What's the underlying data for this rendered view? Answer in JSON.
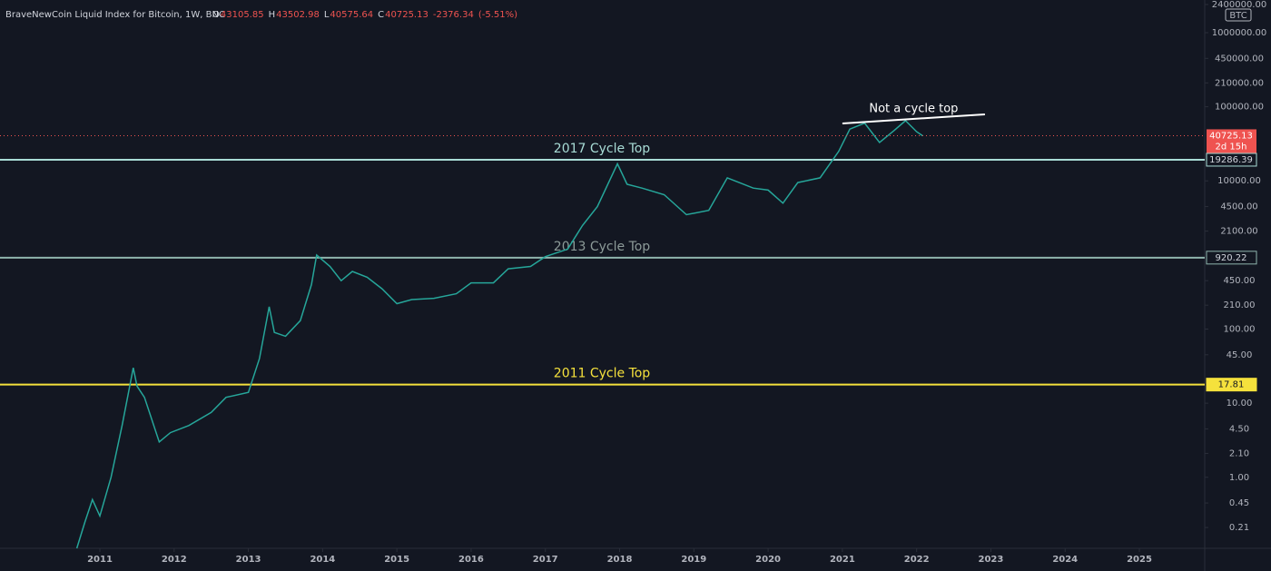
{
  "header": {
    "title": "BraveNewCoin Liquid Index for Bitcoin, 1W, BNC",
    "ohlc": [
      {
        "label": "O",
        "value": 43105.85
      },
      {
        "label": "H",
        "value": 43502.98
      },
      {
        "label": "L",
        "value": 40575.64
      },
      {
        "label": "C",
        "value": 40725.13
      }
    ],
    "change": -2376.34,
    "change_pct": "(-5.51%)"
  },
  "chart_data": {
    "type": "line",
    "log_scale": true,
    "color": "#26a69a",
    "currency": "BTC",
    "x": [
      2010.69,
      2010.8,
      2010.9,
      2011.0,
      2011.15,
      2011.3,
      2011.45,
      2011.5,
      2011.6,
      2011.8,
      2011.95,
      2012.2,
      2012.5,
      2012.7,
      2013.0,
      2013.15,
      2013.28,
      2013.35,
      2013.5,
      2013.7,
      2013.85,
      2013.92,
      2014.1,
      2014.25,
      2014.4,
      2014.6,
      2014.8,
      2015.0,
      2015.2,
      2015.5,
      2015.8,
      2016.0,
      2016.3,
      2016.5,
      2016.8,
      2017.0,
      2017.3,
      2017.5,
      2017.7,
      2017.97,
      2018.1,
      2018.3,
      2018.6,
      2018.9,
      2019.2,
      2019.45,
      2019.8,
      2020.0,
      2020.2,
      2020.4,
      2020.7,
      2020.95,
      2021.1,
      2021.3,
      2021.5,
      2021.7,
      2021.85,
      2022.0,
      2022.08
    ],
    "values": [
      0.11,
      0.25,
      0.5,
      0.3,
      1.0,
      5,
      30,
      17,
      12,
      3,
      4,
      5,
      7.5,
      12,
      14,
      40,
      200,
      90,
      80,
      130,
      400,
      1000,
      700,
      450,
      600,
      500,
      350,
      220,
      250,
      260,
      300,
      420,
      420,
      650,
      700,
      950,
      1200,
      2500,
      4500,
      17000,
      9000,
      8000,
      6500,
      3500,
      4000,
      11000,
      8000,
      7500,
      5000,
      9500,
      11000,
      25000,
      50000,
      60000,
      33000,
      48000,
      65000,
      46000,
      40725.13
    ],
    "xlim": [
      2009.655,
      2025.88
    ],
    "ylim": [
      0.11,
      2760000
    ],
    "xticks": [
      2011,
      2012,
      2013,
      2014,
      2015,
      2016,
      2017,
      2018,
      2019,
      2020,
      2021,
      2022,
      2023,
      2024,
      2025
    ],
    "yticks": [
      {
        "value": 2400000,
        "label": "2400000.00"
      },
      {
        "value": 1000000,
        "label": "1000000.00"
      },
      {
        "value": 450000,
        "label": "450000.00"
      },
      {
        "value": 210000,
        "label": "210000.00"
      },
      {
        "value": 100000,
        "label": "100000.00"
      },
      {
        "value": 10000,
        "label": "10000.00"
      },
      {
        "value": 4500,
        "label": "4500.00"
      },
      {
        "value": 2100,
        "label": "2100.00"
      },
      {
        "value": 450,
        "label": "450.00"
      },
      {
        "value": 210,
        "label": "210.00"
      },
      {
        "value": 100,
        "label": "100.00"
      },
      {
        "value": 45,
        "label": "45.00"
      },
      {
        "value": 10,
        "label": "10.00"
      },
      {
        "value": 4.5,
        "label": "4.50"
      },
      {
        "value": 2.1,
        "label": "2.10"
      },
      {
        "value": 1,
        "label": "1.00"
      },
      {
        "value": 0.45,
        "label": "0.45"
      },
      {
        "value": 0.21,
        "label": "0.21"
      }
    ],
    "horizontal_lines": [
      {
        "value": 19286.39,
        "annotation": "2017 Cycle Top",
        "color": "#a8dcd6",
        "text_color": "#a8dcd6"
      },
      {
        "value": 920.22,
        "annotation": "2013 Cycle Top",
        "color": "#8fb5ad",
        "text_color": "#8c9a98"
      },
      {
        "value": 17.81,
        "annotation": "2011 Cycle Top",
        "color": "#f5e13c",
        "text_color": "#f5e13c"
      }
    ],
    "last_price": {
      "value": 40725.13,
      "countdown": "2d 15h",
      "color": "#ef5350"
    },
    "trend_line": {
      "x": [
        2021.0,
        2022.92
      ],
      "values": [
        59600,
        79000
      ],
      "label": "Not a cycle top",
      "color": "#ffffff"
    }
  }
}
